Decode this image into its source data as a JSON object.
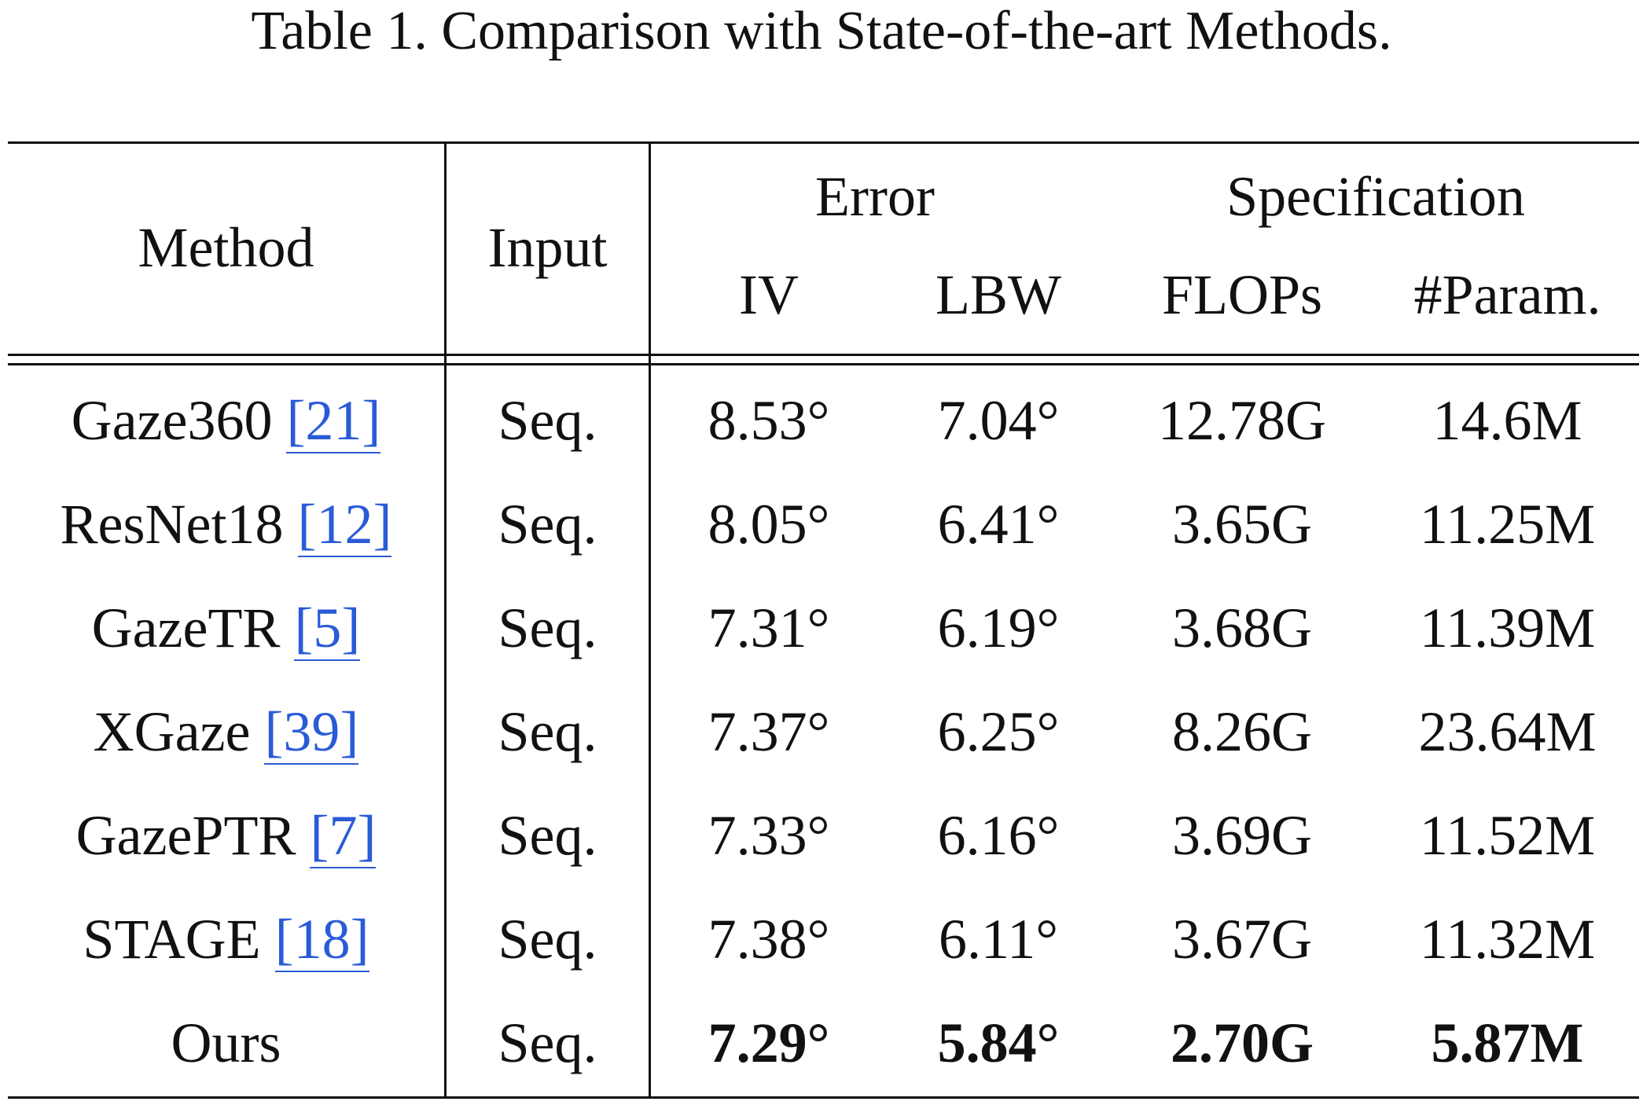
{
  "caption": "Table 1. Comparison with State-of-the-art Methods.",
  "header": {
    "method": "Method",
    "input": "Input",
    "error_group": "Error",
    "spec_group": "Specification",
    "iv": "IV",
    "lbw": "LBW",
    "flops": "FLOPs",
    "params": "#Param."
  },
  "rows": [
    {
      "name": "Gaze360",
      "cite": "[21]",
      "input": "Seq.",
      "iv": "8.53°",
      "lbw": "7.04°",
      "flops": "12.78G",
      "params": "14.6M"
    },
    {
      "name": "ResNet18",
      "cite": "[12]",
      "input": "Seq.",
      "iv": "8.05°",
      "lbw": "6.41°",
      "flops": "3.65G",
      "params": "11.25M"
    },
    {
      "name": "GazeTR",
      "cite": "[5]",
      "input": "Seq.",
      "iv": "7.31°",
      "lbw": "6.19°",
      "flops": "3.68G",
      "params": "11.39M"
    },
    {
      "name": "XGaze",
      "cite": "[39]",
      "input": "Seq.",
      "iv": "7.37°",
      "lbw": "6.25°",
      "flops": "8.26G",
      "params": "23.64M"
    },
    {
      "name": "GazePTR",
      "cite": "[7]",
      "input": "Seq.",
      "iv": "7.33°",
      "lbw": "6.16°",
      "flops": "3.69G",
      "params": "11.52M"
    },
    {
      "name": "STAGE",
      "cite": "[18]",
      "input": "Seq.",
      "iv": "7.38°",
      "lbw": "6.11°",
      "flops": "3.67G",
      "params": "11.32M"
    },
    {
      "name": "Ours",
      "cite": "",
      "input": "Seq.",
      "iv": "7.29°",
      "lbw": "5.84°",
      "flops": "2.70G",
      "params": "5.87M"
    }
  ],
  "colors": {
    "citation": "#2a5bd7",
    "text": "#111111"
  }
}
